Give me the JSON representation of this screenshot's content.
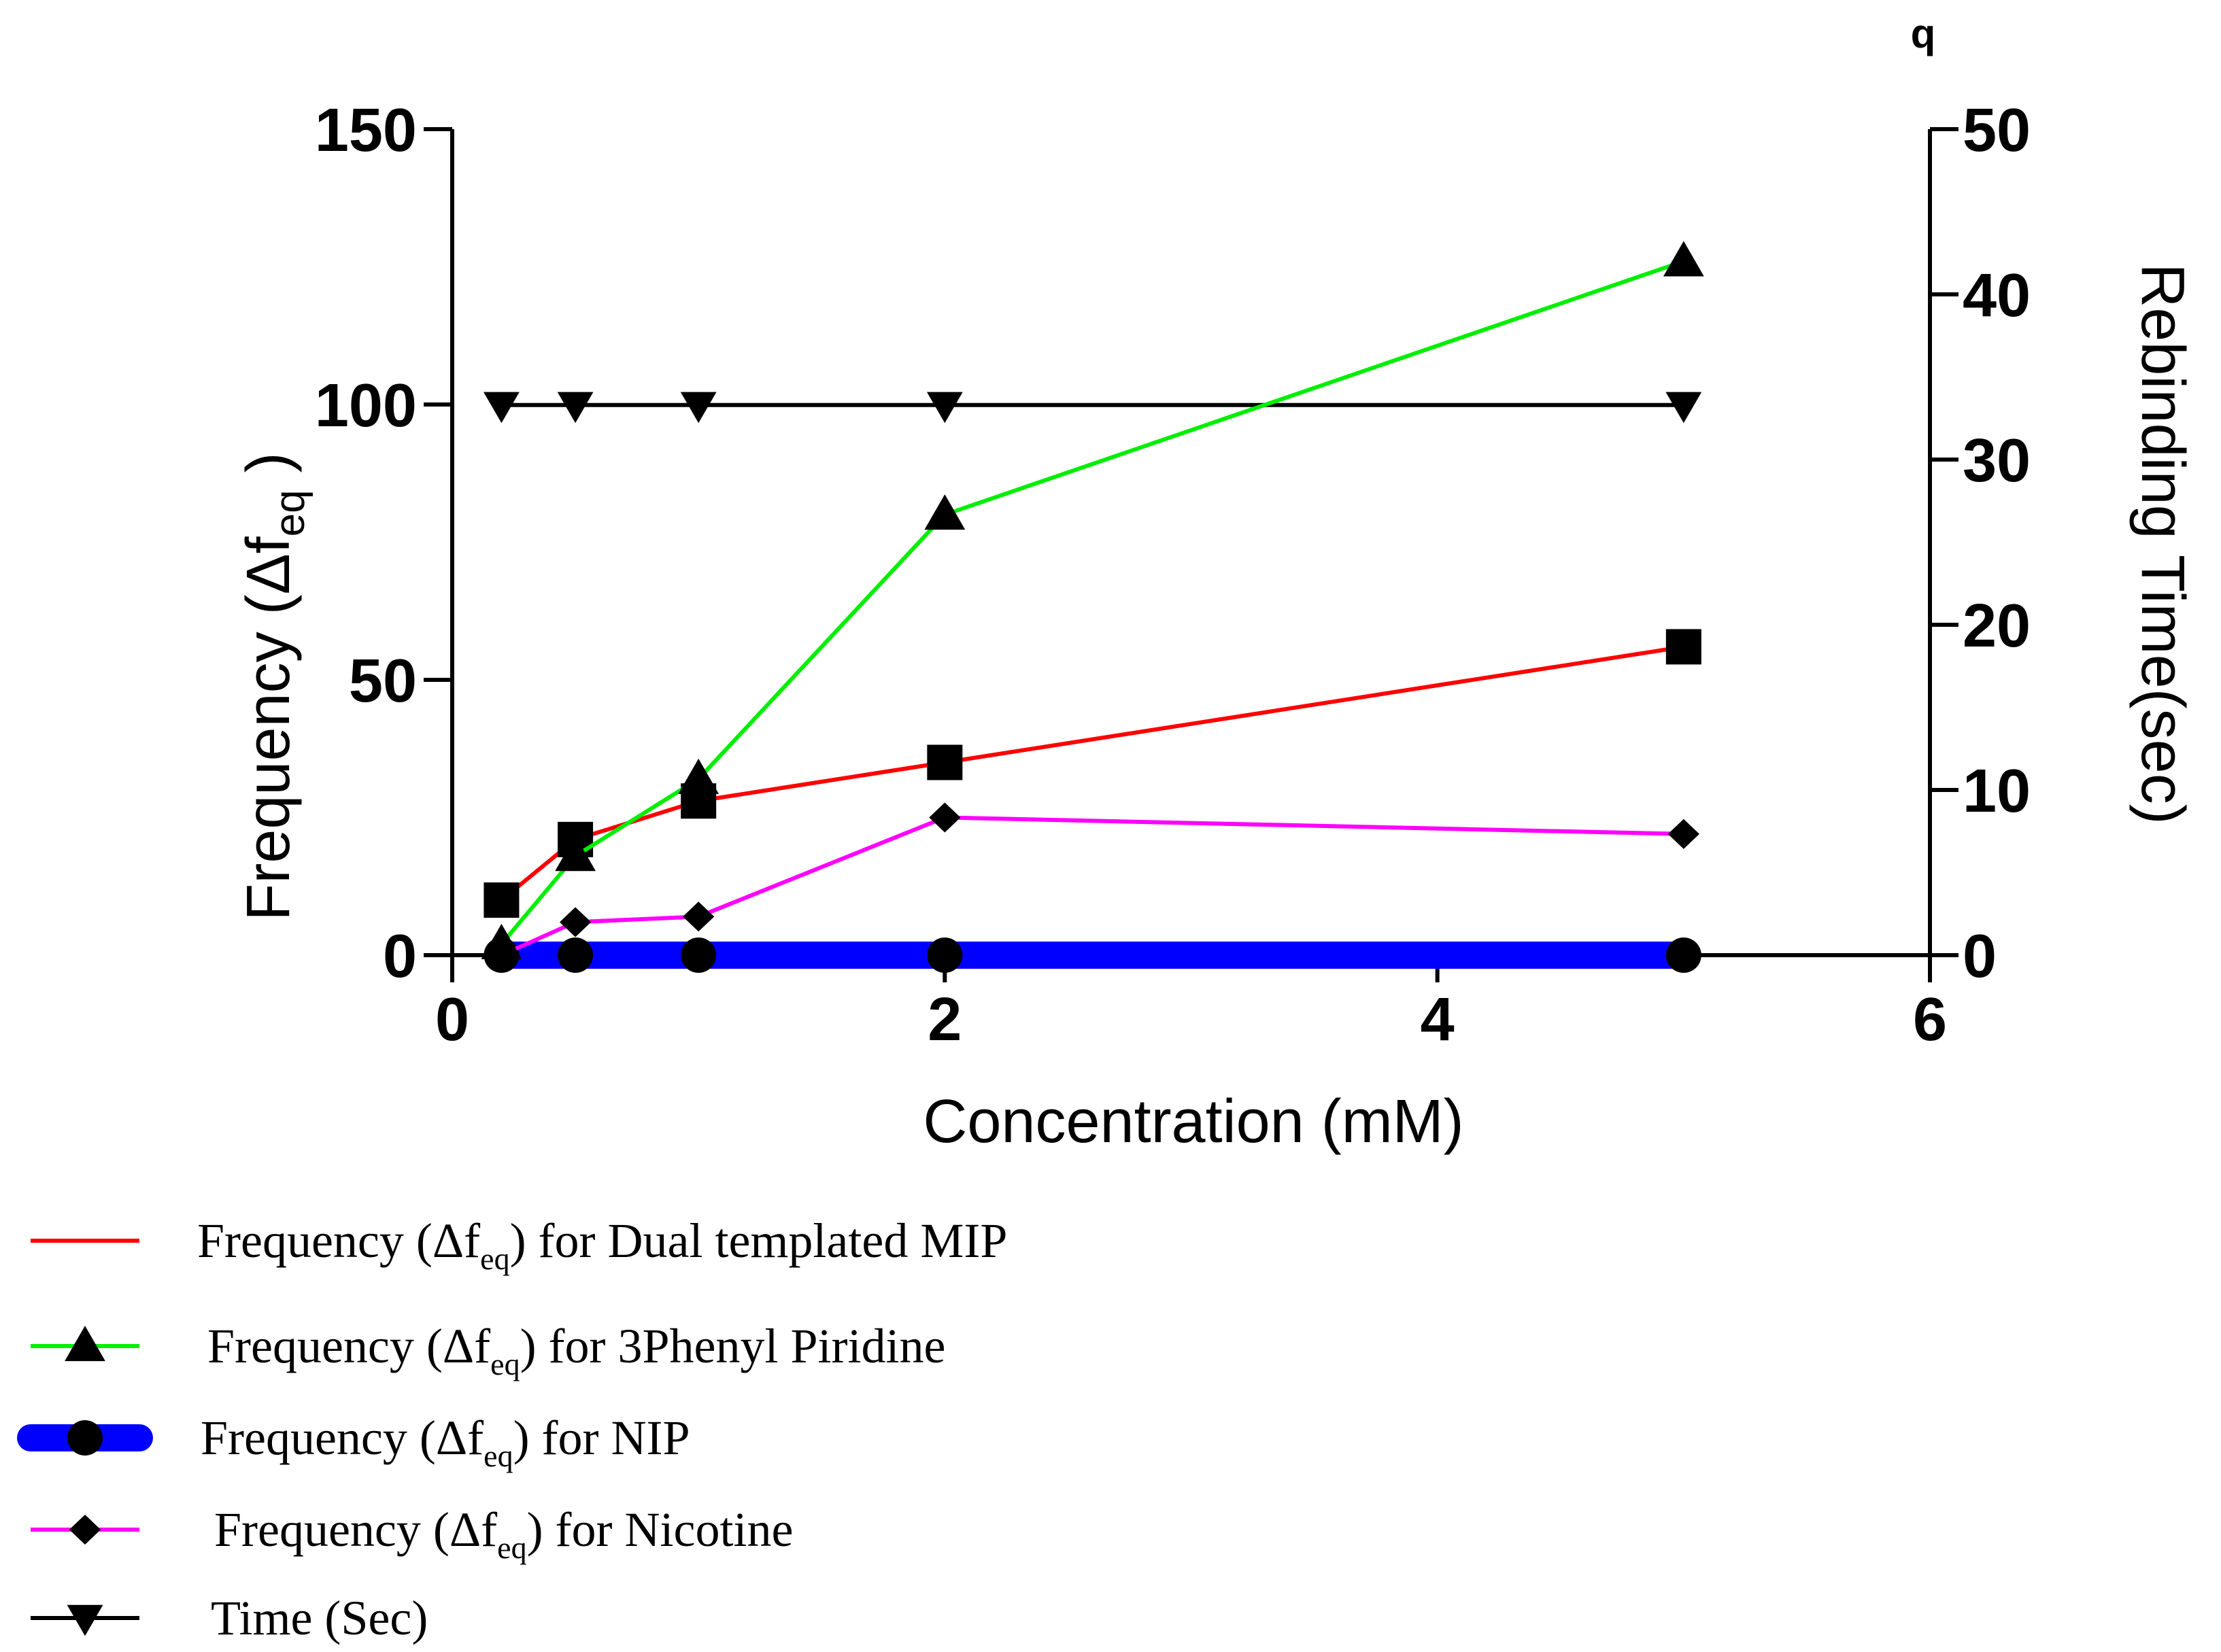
{
  "corner_mark": "q",
  "chart_data": {
    "type": "line",
    "xlabel": "Concentration (mM)",
    "ylabel": "Frequency (Δf",
    "ylabel_sub": "eq",
    "ylabel_close": " )",
    "y2label": "Rebinding Time(sec)",
    "xlim": [
      0,
      6
    ],
    "ylim": [
      0,
      150
    ],
    "y2lim": [
      0,
      50
    ],
    "xticks": [
      0,
      2,
      4,
      6
    ],
    "yticks": [
      0,
      50,
      100,
      150
    ],
    "y2ticks": [
      0,
      10,
      20,
      30,
      40,
      50
    ],
    "grid": false,
    "legend_position": "bottom",
    "series": [
      {
        "name": "Frequency (Δfeq) for Dual templated MIP",
        "legend_pre": "Frequency (Δf",
        "legend_sub": "eq",
        "legend_post": ") for Dual templated MIP",
        "color": "#ff0000",
        "marker": "square",
        "axis": "left",
        "x": [
          0.2,
          0.5,
          1,
          2,
          5
        ],
        "y": [
          10,
          21,
          28,
          35,
          56
        ]
      },
      {
        "name": "Frequency (Δfeq) for 3Phenyl Piridine",
        "legend_pre": "Frequency (Δf",
        "legend_sub": "eq",
        "legend_post": ") for 3Phenyl Piridine",
        "color": "#00ee00",
        "marker": "triangle-up",
        "axis": "left",
        "x": [
          0.2,
          0.5,
          1,
          2,
          5
        ],
        "y": [
          2,
          18,
          32,
          80,
          126
        ]
      },
      {
        "name": "Frequency (Δfeq) for NIP",
        "legend_pre": "Frequency (Δf",
        "legend_sub": "eq",
        "legend_post": ") for NIP",
        "color": "#0000ff",
        "marker": "circle",
        "axis": "left",
        "thick": true,
        "x": [
          0.2,
          0.5,
          1,
          2,
          5
        ],
        "y": [
          0,
          0,
          0,
          0,
          0
        ]
      },
      {
        "name": "Frequency (Δfeq) for Nicotine",
        "legend_pre": "Frequency (Δf",
        "legend_sub": "eq",
        "legend_post": ") for Nicotine",
        "color": "#ff00ff",
        "marker": "diamond",
        "axis": "left",
        "x": [
          0.2,
          0.5,
          1,
          2,
          5
        ],
        "y": [
          0,
          6,
          7,
          25,
          22
        ]
      },
      {
        "name": "Time (Sec)",
        "legend_pre": "Time (Sec)",
        "legend_sub": "",
        "legend_post": "",
        "color": "#000000",
        "marker": "triangle-down",
        "axis": "right",
        "x": [
          0.2,
          0.5,
          1,
          2,
          5
        ],
        "y": [
          33.3,
          33.3,
          33.3,
          33.3,
          33.3
        ]
      }
    ]
  }
}
